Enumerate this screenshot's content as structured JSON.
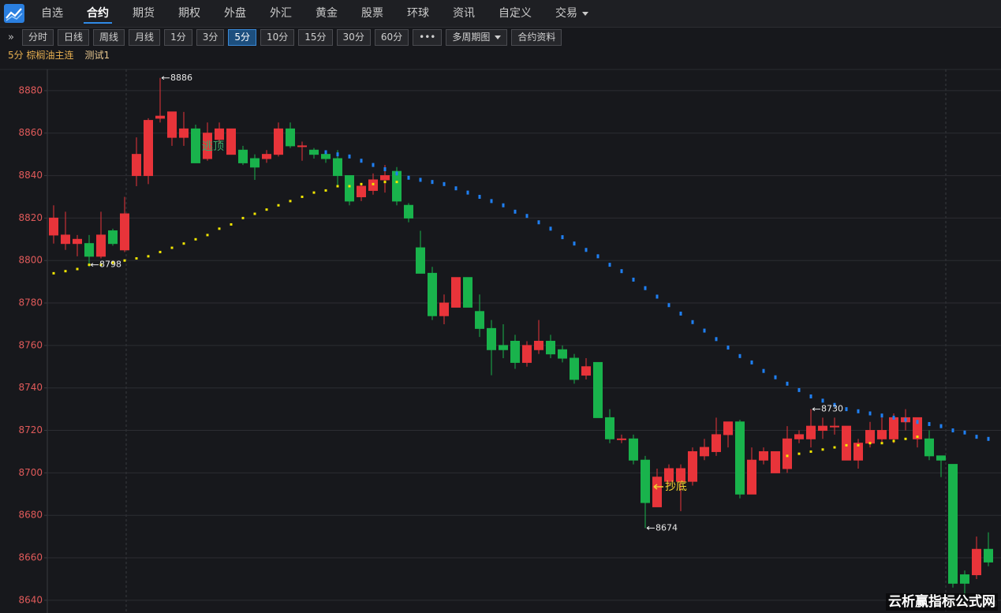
{
  "menu": {
    "items": [
      "自选",
      "合约",
      "期货",
      "期权",
      "外盘",
      "外汇",
      "黄金",
      "股票",
      "环球",
      "资讯",
      "自定义",
      "交易"
    ],
    "active": 1,
    "dropdown": 11
  },
  "toolbar": {
    "toggle": "»",
    "items": [
      "分时",
      "日线",
      "周线",
      "月线",
      "1分",
      "3分",
      "5分",
      "10分",
      "15分",
      "30分",
      "60分",
      "•••",
      "多周期图",
      "合约资料"
    ],
    "active": 6,
    "dropdown": 12
  },
  "info": {
    "period_symbol": "5分 棕榈油主连",
    "indicator": "测试1"
  },
  "watermark": "云析赢指标公式网",
  "chart_data": {
    "type": "candlestick",
    "ylim": [
      8634,
      8890
    ],
    "yticks": [
      8640,
      8660,
      8680,
      8700,
      8720,
      8740,
      8760,
      8780,
      8800,
      8820,
      8840,
      8860,
      8880
    ],
    "grid": true,
    "up_color": "#e8343a",
    "down_color": "#19b34c",
    "candles": {
      "open": [
        8812,
        8808,
        8808,
        8808,
        8802,
        8814,
        8805,
        8840,
        8840,
        8867,
        8858,
        8858,
        8862,
        8848,
        8857,
        8850,
        8852,
        8848,
        8848,
        8850,
        8862,
        8854,
        8852,
        8850,
        8848,
        8840,
        8830,
        8833,
        8838,
        8842,
        8826,
        8806,
        8794,
        8774,
        8778,
        8792,
        8776,
        8768,
        8760,
        8762,
        8752,
        8758,
        8762,
        8758,
        8754,
        8746,
        8752,
        8726,
        8716,
        8716,
        8706,
        8684,
        8696,
        8696,
        8696,
        8708,
        8710,
        8718,
        8724,
        8690,
        8706,
        8700,
        8702,
        8716,
        8716,
        8720,
        8722,
        8706,
        8706,
        8714,
        8716,
        8716,
        8724,
        8716,
        8716,
        8708,
        8704,
        8652,
        8652,
        8664
      ],
      "high": [
        8826,
        8823,
        8812,
        8812,
        8823,
        8815,
        8830,
        8858,
        8867,
        8886,
        8870,
        8870,
        8864,
        8865,
        8865,
        8862,
        8854,
        8850,
        8852,
        8865,
        8865,
        8856,
        8853,
        8850,
        8852,
        8840,
        8836,
        8841,
        8845,
        8844,
        8827,
        8814,
        8797,
        8784,
        8792,
        8792,
        8784,
        8772,
        8770,
        8765,
        8762,
        8772,
        8765,
        8760,
        8756,
        8754,
        8752,
        8730,
        8718,
        8718,
        8708,
        8702,
        8704,
        8704,
        8712,
        8716,
        8726,
        8724,
        8725,
        8712,
        8712,
        8710,
        8722,
        8720,
        8730,
        8726,
        8726,
        8722,
        8716,
        8724,
        8726,
        8728,
        8730,
        8726,
        8720,
        8708,
        8704,
        8654,
        8670,
        8672
      ],
      "low": [
        8808,
        8805,
        8802,
        8797,
        8801,
        8807,
        8804,
        8835,
        8836,
        8865,
        8854,
        8854,
        8846,
        8847,
        8855,
        8850,
        8845,
        8838,
        8846,
        8849,
        8853,
        8847,
        8848,
        8846,
        8835,
        8826,
        8828,
        8831,
        8832,
        8826,
        8818,
        8794,
        8772,
        8770,
        8778,
        8778,
        8764,
        8746,
        8754,
        8749,
        8750,
        8756,
        8754,
        8752,
        8742,
        8744,
        8726,
        8714,
        8714,
        8704,
        8674,
        8684,
        8694,
        8682,
        8694,
        8706,
        8708,
        8712,
        8688,
        8690,
        8704,
        8700,
        8700,
        8714,
        8712,
        8716,
        8718,
        8706,
        8702,
        8712,
        8714,
        8714,
        8720,
        8712,
        8706,
        8698,
        8646,
        8638,
        8650,
        8656
      ],
      "close": [
        8820,
        8812,
        8810,
        8802,
        8812,
        8808,
        8822,
        8850,
        8866,
        8868,
        8870,
        8862,
        8846,
        8860,
        8862,
        8862,
        8846,
        8844,
        8850,
        8862,
        8854,
        8854,
        8850,
        8848,
        8840,
        8828,
        8835,
        8838,
        8840,
        8828,
        8820,
        8794,
        8774,
        8780,
        8792,
        8778,
        8768,
        8758,
        8758,
        8752,
        8760,
        8762,
        8756,
        8754,
        8744,
        8750,
        8726,
        8716,
        8716,
        8706,
        8686,
        8698,
        8702,
        8702,
        8710,
        8712,
        8718,
        8724,
        8690,
        8706,
        8710,
        8710,
        8716,
        8718,
        8722,
        8722,
        8722,
        8722,
        8714,
        8720,
        8720,
        8726,
        8726,
        8726,
        8708,
        8706,
        8648,
        8648,
        8664,
        8658
      ]
    },
    "lines": [
      {
        "color": "#f2e600",
        "values": [
          8794,
          8795,
          8796,
          8798,
          8798,
          8799,
          8800,
          8801,
          8802,
          8804,
          8806,
          8808,
          8810,
          8812,
          8815,
          8817,
          8820,
          8822,
          8824,
          8826,
          8828,
          8830,
          8832,
          8833,
          8835,
          8835,
          8836,
          8836,
          8837,
          8837,
          null,
          null,
          null,
          null,
          null,
          null,
          null,
          null,
          null,
          null,
          null,
          null,
          null,
          null,
          null,
          null,
          null,
          null,
          null,
          null,
          null,
          null,
          null,
          null,
          null,
          null,
          null,
          null,
          null,
          null,
          null,
          null,
          8708,
          8709,
          8710,
          8711,
          8712,
          8713,
          8713,
          8714,
          8714,
          8715,
          8716,
          8717,
          null,
          null,
          null,
          null,
          null,
          null
        ]
      },
      {
        "color": "#1f7ff2",
        "values": [
          null,
          null,
          null,
          null,
          null,
          null,
          null,
          null,
          null,
          null,
          null,
          null,
          null,
          null,
          null,
          null,
          null,
          null,
          null,
          null,
          null,
          null,
          null,
          8851,
          8850,
          8849,
          8847,
          8845,
          8843,
          8841,
          8839,
          8838,
          8837,
          8836,
          8834,
          8832,
          8830,
          8828,
          8826,
          8823,
          8821,
          8818,
          8815,
          8811,
          8808,
          8805,
          8802,
          8798,
          8795,
          8791,
          8787,
          8783,
          8779,
          8775,
          8771,
          8767,
          8763,
          8759,
          8755,
          8752,
          8748,
          8745,
          8742,
          8739,
          8736,
          8734,
          8732,
          8730,
          8729,
          8728,
          8727,
          8726,
          8725,
          8724,
          8723,
          8722,
          8720,
          8719,
          8717,
          8716
        ]
      }
    ],
    "signals": {
      "top": "逃顶",
      "bottom": "抄底"
    }
  }
}
